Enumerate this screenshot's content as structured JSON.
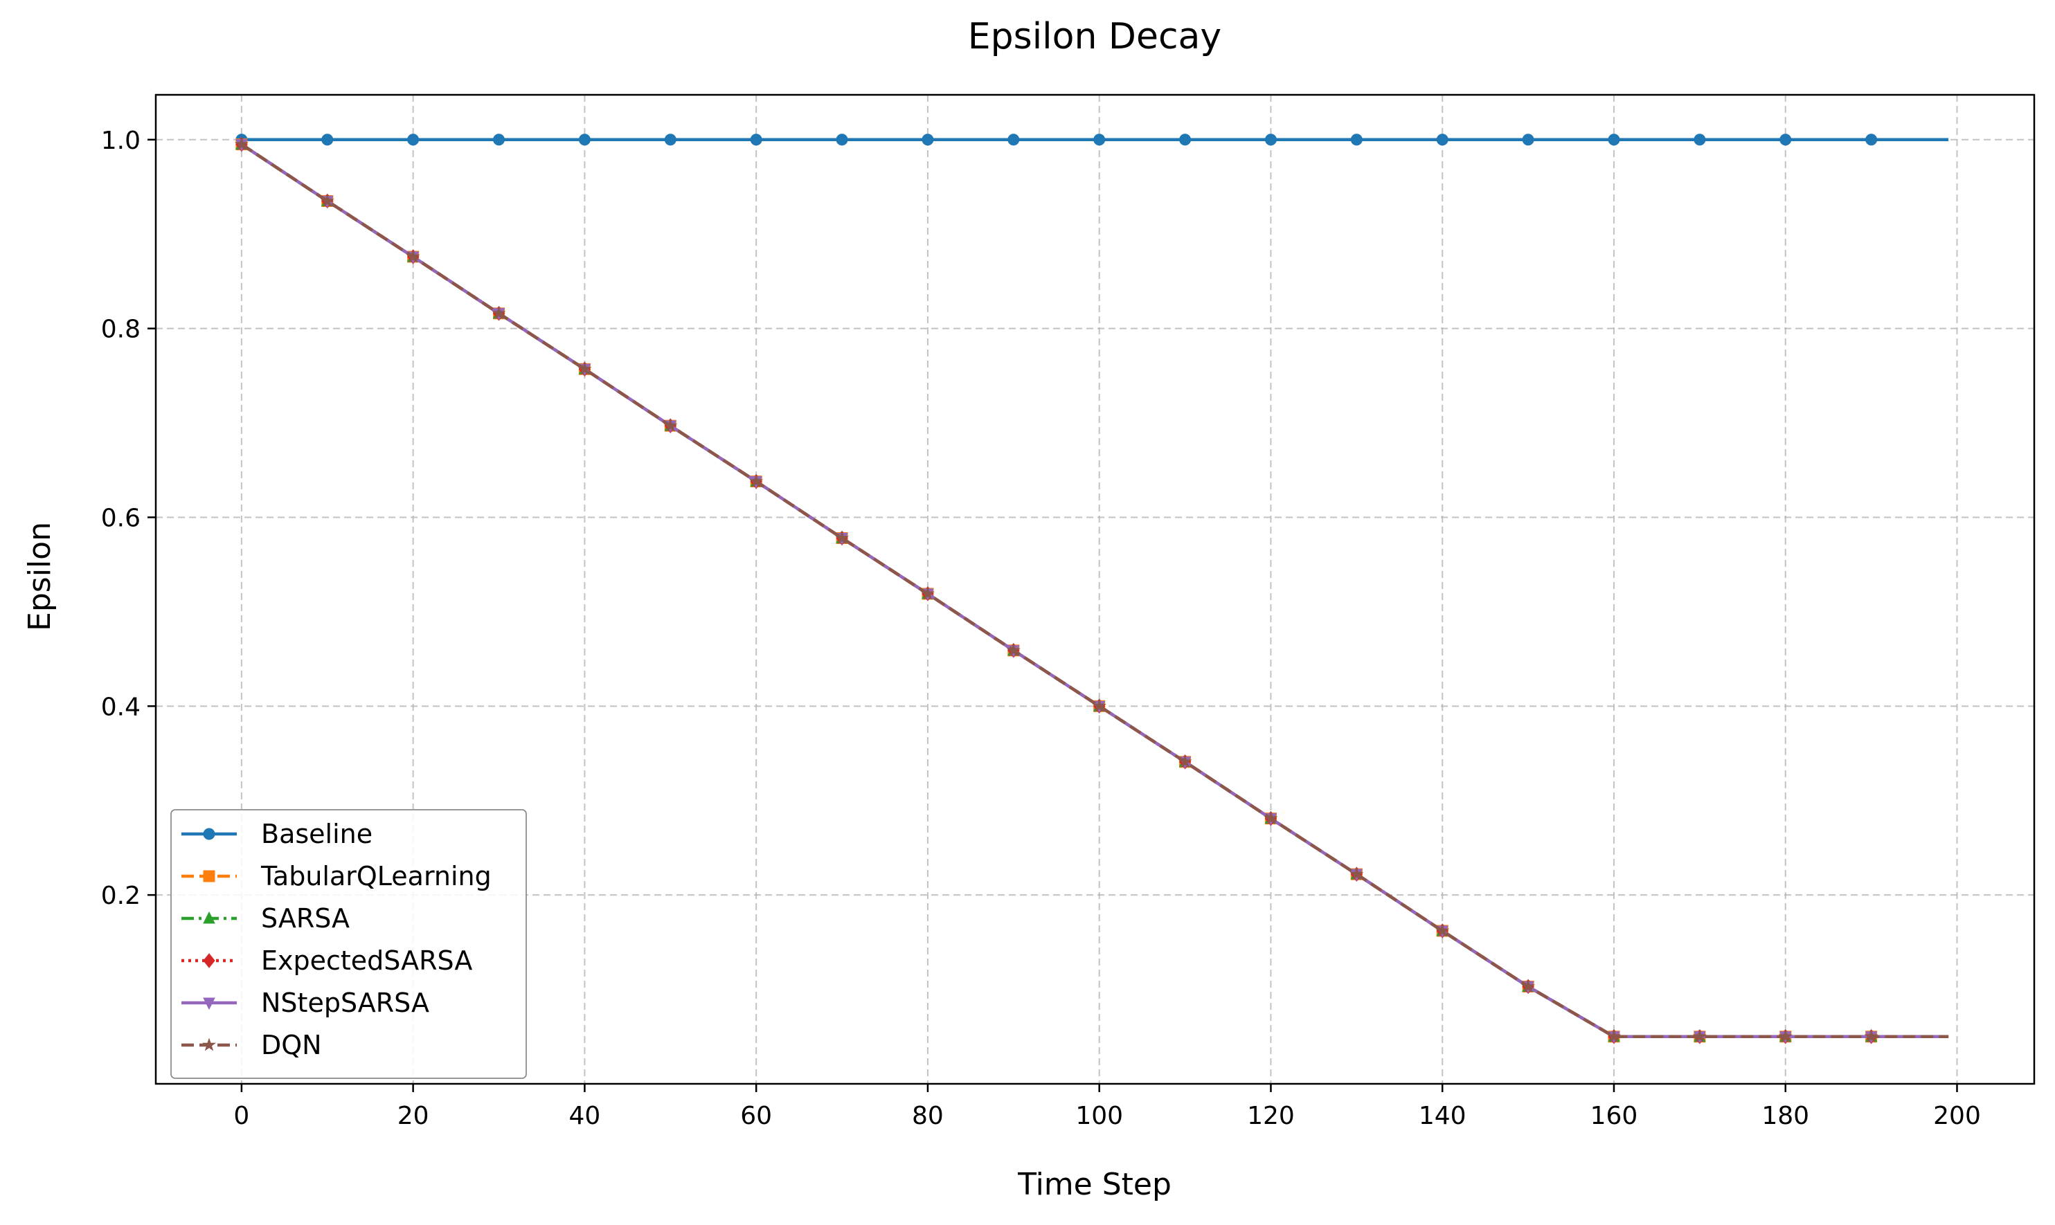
{
  "chart_data": {
    "type": "line",
    "title": "Epsilon Decay",
    "xlabel": "Time Step",
    "ylabel": "Epsilon",
    "xlim": [
      -10,
      209
    ],
    "ylim": [
      0.0,
      1.0475
    ],
    "xticks": [
      0,
      20,
      40,
      60,
      80,
      100,
      120,
      140,
      160,
      180,
      200
    ],
    "yticks": [
      0.2,
      0.4,
      0.6,
      0.8,
      1.0
    ],
    "xtick_labels": [
      "0",
      "20",
      "40",
      "60",
      "80",
      "100",
      "120",
      "140",
      "160",
      "180",
      "200"
    ],
    "ytick_labels": [
      "0.2",
      "0.4",
      "0.6",
      "0.8",
      "1.0"
    ],
    "grid": true,
    "legend_position": "lower-left",
    "x": [
      0,
      10,
      20,
      30,
      40,
      50,
      60,
      70,
      80,
      90,
      100,
      110,
      120,
      130,
      140,
      150,
      160,
      170,
      180,
      190,
      199
    ],
    "series": [
      {
        "name": "Baseline",
        "color": "#1f77b4",
        "dash": "solid",
        "marker": "circle",
        "values": [
          1.0,
          1.0,
          1.0,
          1.0,
          1.0,
          1.0,
          1.0,
          1.0,
          1.0,
          1.0,
          1.0,
          1.0,
          1.0,
          1.0,
          1.0,
          1.0,
          1.0,
          1.0,
          1.0,
          1.0,
          1.0
        ]
      },
      {
        "name": "TabularQLearning",
        "color": "#ff7f0e",
        "dash": "dashed",
        "marker": "square",
        "values": [
          0.995,
          0.935,
          0.876,
          0.816,
          0.757,
          0.697,
          0.638,
          0.578,
          0.519,
          0.459,
          0.4,
          0.341,
          0.281,
          0.222,
          0.162,
          0.103,
          0.05,
          0.05,
          0.05,
          0.05,
          0.05
        ]
      },
      {
        "name": "SARSA",
        "color": "#2ca02c",
        "dash": "dashdot",
        "marker": "triangle-up",
        "values": [
          0.995,
          0.935,
          0.876,
          0.816,
          0.757,
          0.697,
          0.638,
          0.578,
          0.519,
          0.459,
          0.4,
          0.341,
          0.281,
          0.222,
          0.162,
          0.103,
          0.05,
          0.05,
          0.05,
          0.05,
          0.05
        ]
      },
      {
        "name": "ExpectedSARSA",
        "color": "#d62728",
        "dash": "dotted",
        "marker": "diamond",
        "values": [
          0.995,
          0.935,
          0.876,
          0.816,
          0.757,
          0.697,
          0.638,
          0.578,
          0.519,
          0.459,
          0.4,
          0.341,
          0.281,
          0.222,
          0.162,
          0.103,
          0.05,
          0.05,
          0.05,
          0.05,
          0.05
        ]
      },
      {
        "name": "NStepSARSA",
        "color": "#9467bd",
        "dash": "solid",
        "marker": "triangle-down",
        "values": [
          0.995,
          0.935,
          0.876,
          0.816,
          0.757,
          0.697,
          0.638,
          0.578,
          0.519,
          0.459,
          0.4,
          0.341,
          0.281,
          0.222,
          0.162,
          0.103,
          0.05,
          0.05,
          0.05,
          0.05,
          0.05
        ]
      },
      {
        "name": "DQN",
        "color": "#8c564b",
        "dash": "dashed",
        "marker": "star",
        "values": [
          0.995,
          0.935,
          0.876,
          0.816,
          0.757,
          0.697,
          0.638,
          0.578,
          0.519,
          0.459,
          0.4,
          0.341,
          0.281,
          0.222,
          0.162,
          0.103,
          0.05,
          0.05,
          0.05,
          0.05,
          0.05
        ]
      }
    ]
  }
}
